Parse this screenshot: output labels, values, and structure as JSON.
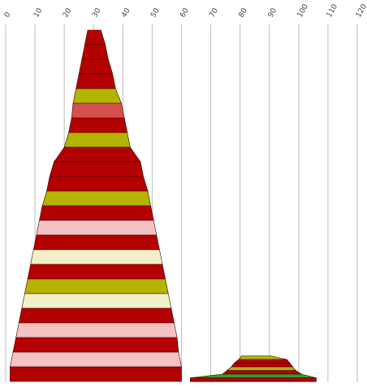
{
  "chart_data": {
    "type": "bar",
    "orientation": "horizontal-stacked-profile",
    "xlim": [
      0,
      120
    ],
    "x_ticks": [
      "0",
      "10",
      "20",
      "30",
      "40",
      "50",
      "60",
      "70",
      "80",
      "90",
      "100",
      "110",
      "120"
    ],
    "grid": true,
    "colors": {
      "red": "#b30000",
      "olive": "#b3b300",
      "light_red": "#d65050",
      "pink": "#f4c2c2",
      "cream": "#f2f0c8",
      "green": "#2da12d"
    },
    "profiles": [
      {
        "layers": [
          {
            "left": 28.0,
            "right": 32.5,
            "color": "red"
          },
          {
            "left": 27.0,
            "right": 34.0,
            "color": "red"
          },
          {
            "left": 26.0,
            "right": 35.0,
            "color": "red"
          },
          {
            "left": 25.0,
            "right": 36.5,
            "color": "red"
          },
          {
            "left": 24.0,
            "right": 37.5,
            "color": "olive"
          },
          {
            "left": 23.0,
            "right": 39.5,
            "color": "light_red"
          },
          {
            "left": 22.5,
            "right": 40.5,
            "color": "red"
          },
          {
            "left": 21.5,
            "right": 41.5,
            "color": "olive"
          },
          {
            "left": 20.0,
            "right": 42.5,
            "color": "red"
          },
          {
            "left": 16.5,
            "right": 46.0,
            "color": "red"
          },
          {
            "left": 15.0,
            "right": 47.0,
            "color": "red"
          },
          {
            "left": 14.0,
            "right": 48.5,
            "color": "olive"
          },
          {
            "left": 12.5,
            "right": 49.5,
            "color": "red"
          },
          {
            "left": 11.5,
            "right": 50.5,
            "color": "pink"
          },
          {
            "left": 10.5,
            "right": 51.5,
            "color": "red"
          },
          {
            "left": 9.5,
            "right": 52.5,
            "color": "cream"
          },
          {
            "left": 8.5,
            "right": 53.5,
            "color": "red"
          },
          {
            "left": 7.5,
            "right": 54.5,
            "color": "olive"
          },
          {
            "left": 6.5,
            "right": 55.5,
            "color": "cream"
          },
          {
            "left": 5.5,
            "right": 56.5,
            "color": "red"
          },
          {
            "left": 4.5,
            "right": 57.5,
            "color": "pink"
          },
          {
            "left": 3.5,
            "right": 58.5,
            "color": "red"
          },
          {
            "left": 2.5,
            "right": 59.0,
            "color": "pink"
          },
          {
            "left": 1.5,
            "right": 60.0,
            "color": "red"
          }
        ]
      },
      {
        "layers": [
          {
            "left": 80.5,
            "right": 90.5,
            "color": "olive"
          },
          {
            "left": 79.5,
            "right": 96.0,
            "color": "red"
          },
          {
            "left": 78.0,
            "right": 97.0,
            "color": "red"
          },
          {
            "left": 77.0,
            "right": 98.0,
            "color": "olive"
          },
          {
            "left": 75.5,
            "right": 99.0,
            "color": "red"
          },
          {
            "left": 74.0,
            "right": 101.0,
            "color": "green"
          },
          {
            "left": 63.0,
            "right": 106.0,
            "color": "red"
          }
        ]
      }
    ]
  }
}
